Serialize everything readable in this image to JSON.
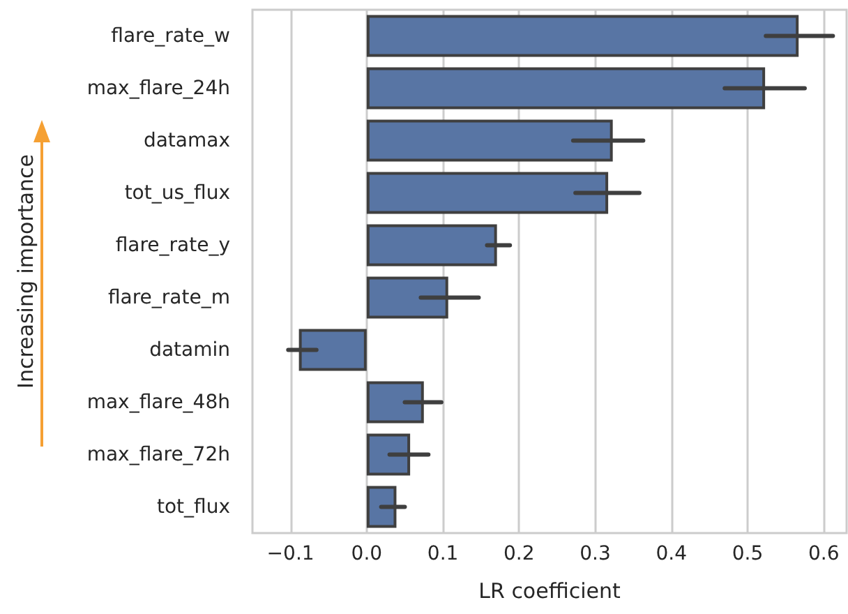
{
  "chart_data": {
    "type": "bar",
    "orientation": "horizontal",
    "xlabel": "LR coefficient",
    "ylabel": "Increasing importance",
    "categories": [
      "flare_rate_w",
      "max_flare_24h",
      "datamax",
      "tot_us_flux",
      "flare_rate_y",
      "flare_rate_m",
      "datamin",
      "max_flare_48h",
      "max_flare_72h",
      "tot_flux"
    ],
    "values": [
      0.567,
      0.523,
      0.323,
      0.317,
      0.171,
      0.107,
      -0.089,
      0.075,
      0.057,
      0.039
    ],
    "errors": [
      [
        0.524,
        0.612
      ],
      [
        0.47,
        0.575
      ],
      [
        0.271,
        0.363
      ],
      [
        0.274,
        0.358
      ],
      [
        0.158,
        0.188
      ],
      [
        0.071,
        0.147
      ],
      [
        -0.103,
        -0.066
      ],
      [
        0.05,
        0.098
      ],
      [
        0.03,
        0.081
      ],
      [
        0.019,
        0.05
      ]
    ],
    "color": "#5875a4",
    "xlim": [
      -0.15,
      0.63
    ],
    "xticks": [
      {
        "value": -0.1,
        "label": "−0.1"
      },
      {
        "value": 0,
        "label": "0.0"
      },
      {
        "value": 0.1,
        "label": "0.1"
      },
      {
        "value": 0.2,
        "label": "0.2"
      },
      {
        "value": 0.3,
        "label": "0.3"
      },
      {
        "value": 0.4,
        "label": "0.4"
      },
      {
        "value": 0.5,
        "label": "0.5"
      },
      {
        "value": 0.6,
        "label": "0.6"
      }
    ],
    "grid": "x"
  }
}
